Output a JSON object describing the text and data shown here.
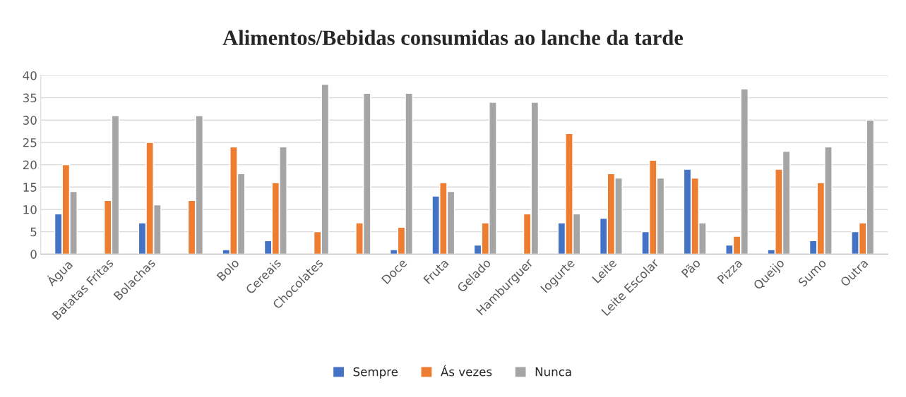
{
  "chart_data": {
    "type": "bar",
    "title": "Alimentos/Bebidas consumidas ao lanche da tarde",
    "categories": [
      "Água",
      "Batatas Fritas",
      "Bolachas",
      null,
      "Bolo",
      "Cereais",
      "Chocolates",
      null,
      "Doce",
      "Fruta",
      "Gelado",
      "Hamburguer",
      "Iogurte",
      "Leite",
      "Leite Escolar",
      "Pão",
      "Pizza",
      "Queijo",
      "Sumo",
      "Outra"
    ],
    "series": [
      {
        "name": "Sempre",
        "color": "#4472c4",
        "values": [
          9,
          null,
          7,
          null,
          1,
          3,
          null,
          null,
          1,
          13,
          2,
          null,
          7,
          8,
          5,
          19,
          2,
          1,
          3,
          5
        ]
      },
      {
        "name": "Ás vezes",
        "color": "#ed7d31",
        "values": [
          20,
          12,
          25,
          12,
          24,
          16,
          5,
          7,
          6,
          16,
          7,
          9,
          27,
          18,
          21,
          17,
          4,
          19,
          16,
          7
        ]
      },
      {
        "name": "Nunca",
        "color": "#a5a5a5",
        "values": [
          14,
          31,
          11,
          31,
          18,
          24,
          38,
          36,
          36,
          14,
          34,
          34,
          9,
          17,
          17,
          7,
          37,
          23,
          24,
          30
        ]
      }
    ],
    "ylim": [
      0,
      40
    ],
    "yticks": [
      0,
      5,
      10,
      15,
      20,
      25,
      30,
      35,
      40
    ],
    "grid": "y",
    "legend": "bottom"
  }
}
